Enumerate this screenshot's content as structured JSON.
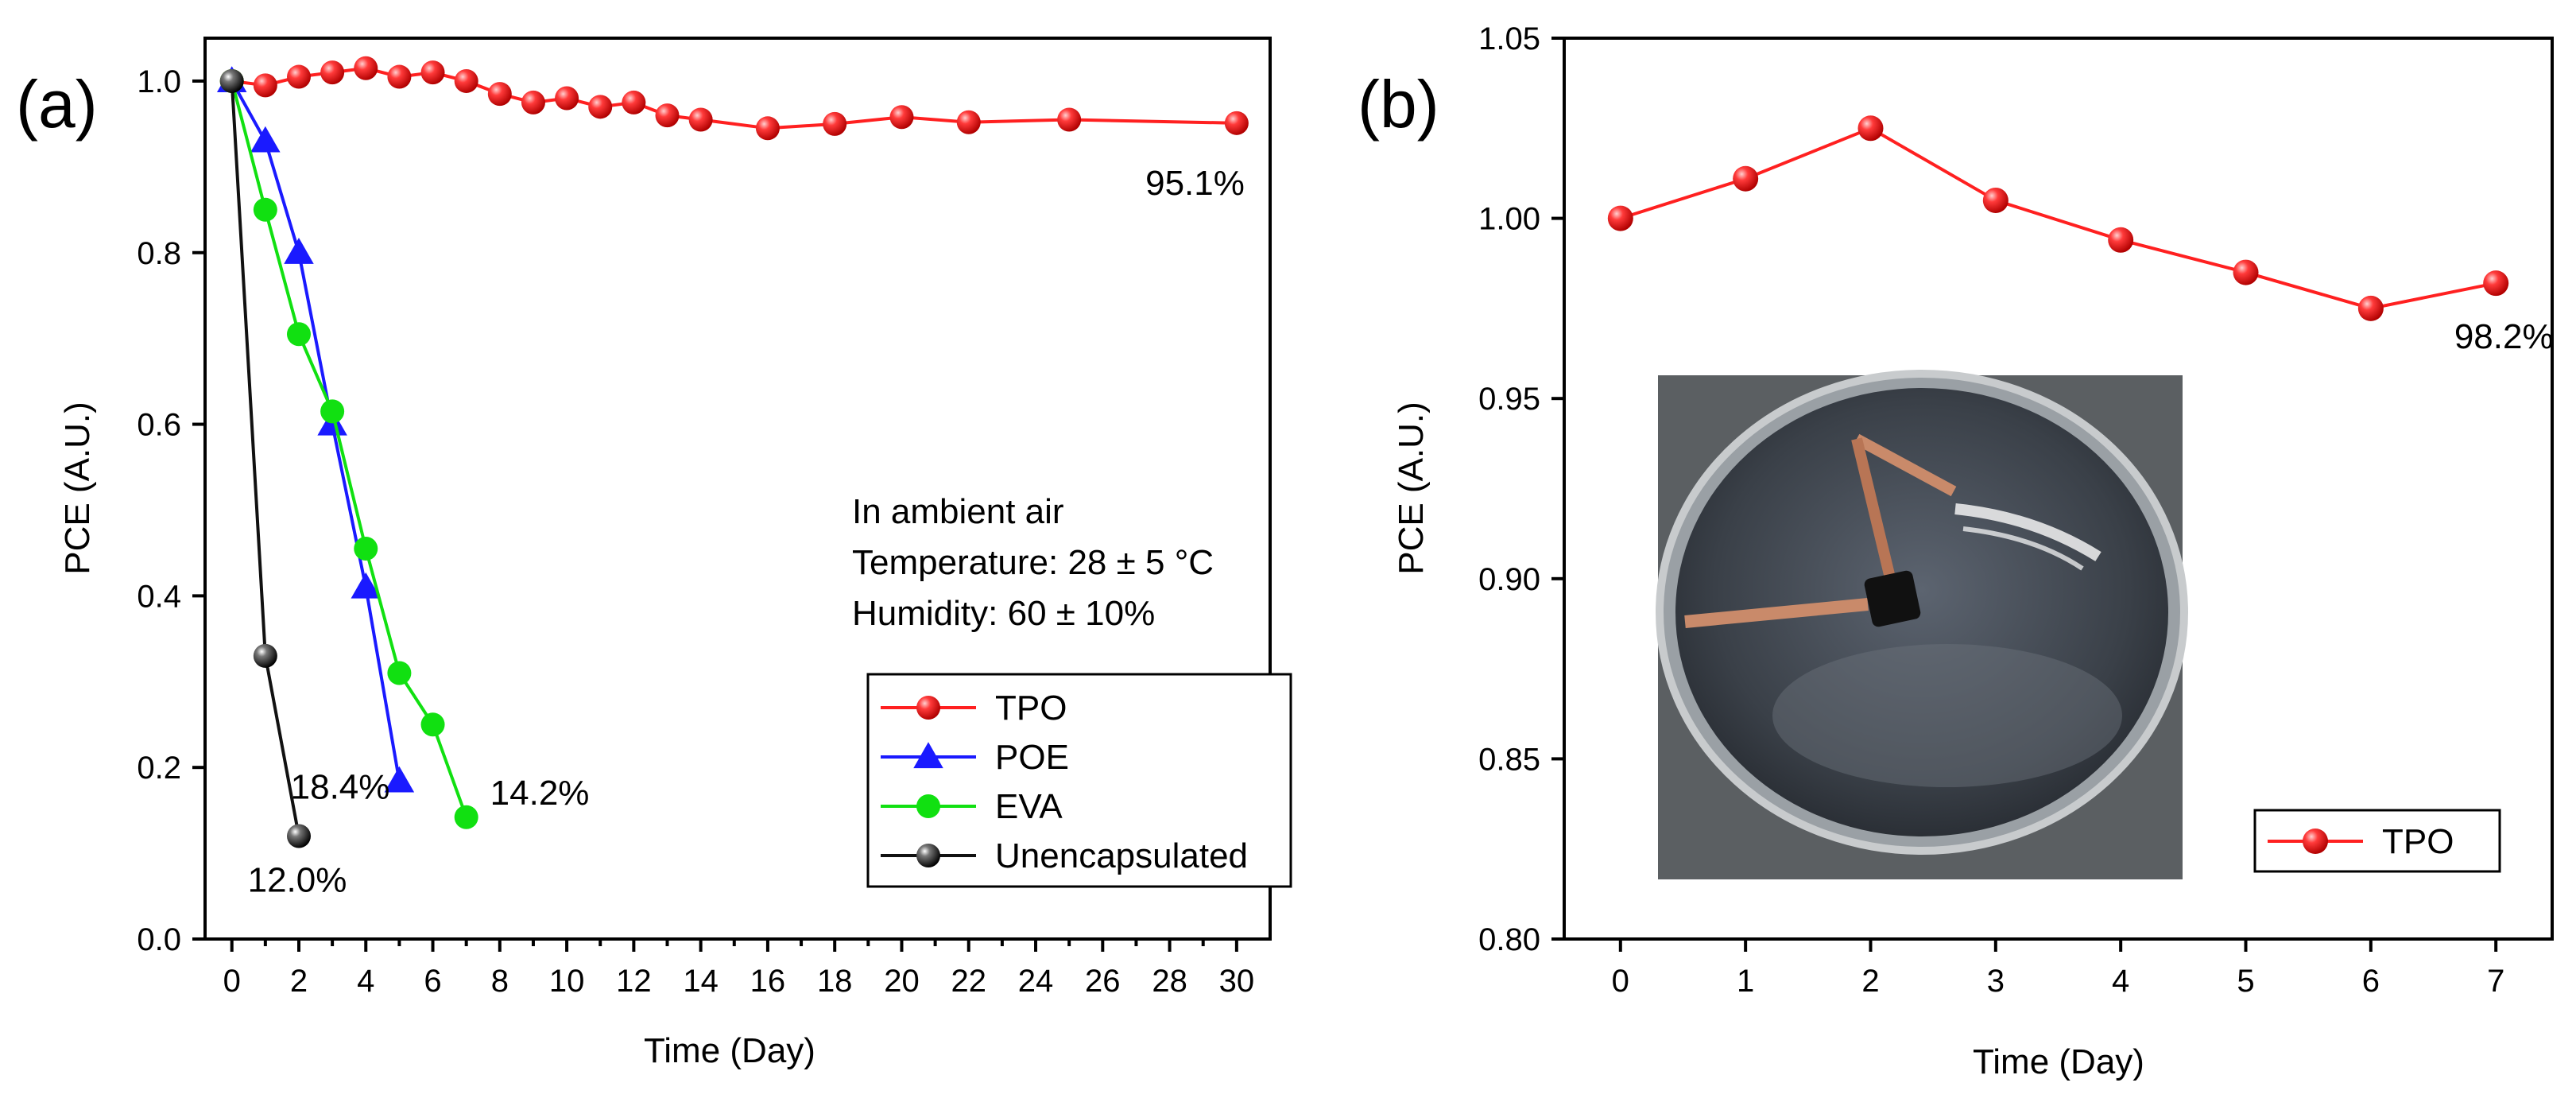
{
  "chart_data": [
    {
      "id": "a",
      "type": "line",
      "panel_label": "(a)",
      "xlabel": "Time (Day)",
      "ylabel": "PCE (A.U.)",
      "xlim": [
        -0.8,
        31
      ],
      "ylim": [
        0,
        1.05
      ],
      "xticks": [
        0,
        1,
        2,
        3,
        4,
        5,
        6,
        7,
        8,
        9,
        10,
        11,
        12,
        13,
        14,
        15,
        16,
        17,
        18,
        19,
        20,
        21,
        22,
        23,
        24,
        25,
        26,
        27,
        28,
        29,
        30
      ],
      "xticklabels": [
        "0",
        "2",
        "4",
        "6",
        "8",
        "10",
        "12",
        "14",
        "16",
        "18",
        "20",
        "22",
        "24",
        "26",
        "28",
        "30"
      ],
      "yticks": [
        0.0,
        0.2,
        0.4,
        0.6,
        0.8,
        1.0
      ],
      "yticklabels": [
        "0.0",
        "0.2",
        "0.4",
        "0.6",
        "0.8",
        "1.0"
      ],
      "series": [
        {
          "name": "TPO",
          "color": "#ff2020",
          "marker": "sphere",
          "x": [
            0,
            1,
            2,
            3,
            4,
            5,
            6,
            7,
            8,
            9,
            10,
            11,
            12,
            13,
            14,
            16,
            18,
            20,
            22,
            25,
            30
          ],
          "y": [
            1.0,
            0.995,
            1.005,
            1.01,
            1.015,
            1.005,
            1.01,
            1.0,
            0.985,
            0.975,
            0.98,
            0.97,
            0.975,
            0.96,
            0.955,
            0.945,
            0.95,
            0.958,
            0.952,
            0.955,
            0.951
          ],
          "end_label": "95.1%"
        },
        {
          "name": "POE",
          "color": "#1a1aff",
          "marker": "triangle",
          "x": [
            0,
            1,
            2,
            3,
            4,
            5
          ],
          "y": [
            1.0,
            0.93,
            0.8,
            0.6,
            0.41,
            0.184
          ],
          "end_label": "18.4%"
        },
        {
          "name": "EVA",
          "color": "#11e011",
          "marker": "circle",
          "x": [
            0,
            1,
            2,
            3,
            4,
            5,
            6,
            7
          ],
          "y": [
            1.0,
            0.85,
            0.705,
            0.615,
            0.455,
            0.31,
            0.25,
            0.142
          ],
          "end_label": "14.2%"
        },
        {
          "name": "Unencapsulated",
          "color": "#111111",
          "marker": "sphere",
          "x": [
            0,
            1,
            2
          ],
          "y": [
            1.0,
            0.33,
            0.12
          ],
          "end_label": "12.0%"
        }
      ],
      "annotation_lines": [
        "In ambient air",
        "Temperature: 28 ± 5 °C",
        "Humidity: 60 ± 10%"
      ],
      "legend": [
        "TPO",
        "POE",
        "EVA",
        "Unencapsulated"
      ],
      "legend_position": "lower-right"
    },
    {
      "id": "b",
      "type": "line",
      "panel_label": "(b)",
      "xlabel": "Time (Day)",
      "ylabel": "PCE (A.U.)",
      "xlim": [
        -0.45,
        7.45
      ],
      "ylim": [
        0.8,
        1.05
      ],
      "xticks": [
        0,
        1,
        2,
        3,
        4,
        5,
        6,
        7
      ],
      "xticklabels": [
        "0",
        "1",
        "2",
        "3",
        "4",
        "5",
        "6",
        "7"
      ],
      "yticks": [
        0.8,
        0.85,
        0.9,
        0.95,
        1.0,
        1.05
      ],
      "yticklabels": [
        "0.80",
        "0.85",
        "0.90",
        "0.95",
        "1.00",
        "1.05"
      ],
      "series": [
        {
          "name": "TPO",
          "color": "#ff2020",
          "marker": "sphere",
          "x": [
            0,
            1,
            2,
            3,
            4,
            5,
            6,
            7
          ],
          "y": [
            1.0,
            1.011,
            1.025,
            1.005,
            0.994,
            0.985,
            0.975,
            0.982
          ],
          "end_label": "98.2%"
        }
      ],
      "legend": [
        "TPO"
      ],
      "legend_position": "lower-right",
      "inset": "photo of encapsulated device submerged in a water-filled glass dish"
    }
  ]
}
